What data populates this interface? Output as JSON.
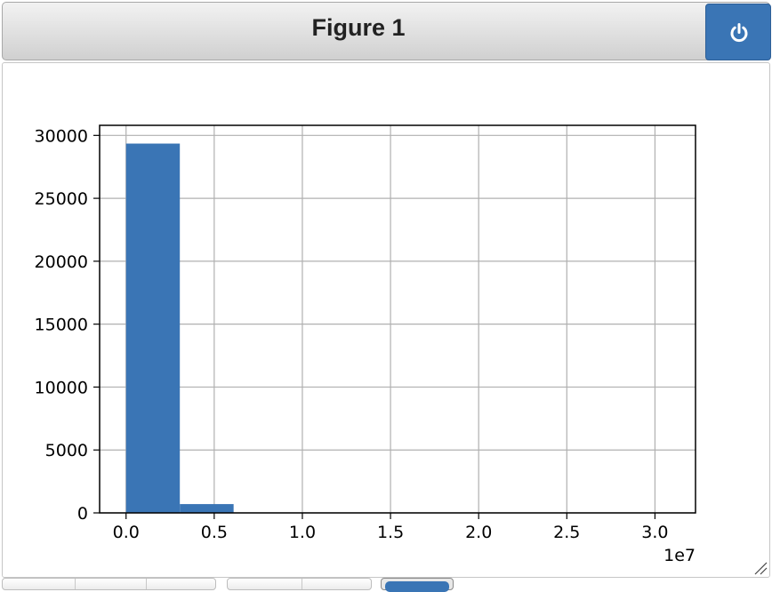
{
  "window": {
    "title": "Figure 1",
    "power_icon": "power-icon",
    "accent_color": "#3a75b5"
  },
  "toolbar": {
    "icons": [
      "home-icon",
      "back-icon",
      "forward-icon",
      "pan-icon",
      "zoom-icon",
      "download-icon"
    ]
  },
  "chart_data": {
    "type": "bar",
    "title": "",
    "xlabel": "",
    "ylabel": "",
    "x_offset_label": "1e7",
    "bar_color": "#3a75b5",
    "grid": true,
    "xlim": [
      -0.15,
      3.23
    ],
    "ylim": [
      0,
      30800
    ],
    "xticks": [
      0.0,
      0.5,
      1.0,
      1.5,
      2.0,
      2.5,
      3.0
    ],
    "xtick_labels": [
      "0.0",
      "0.5",
      "1.0",
      "1.5",
      "2.0",
      "2.5",
      "3.0"
    ],
    "yticks": [
      0,
      5000,
      10000,
      15000,
      20000,
      25000,
      30000
    ],
    "ytick_labels": [
      "0",
      "5000",
      "10000",
      "15000",
      "20000",
      "25000",
      "30000"
    ],
    "bins": [
      0.0,
      0.305,
      0.61,
      0.915,
      1.22,
      1.525,
      1.83,
      2.135,
      2.44,
      2.745,
      3.05
    ],
    "counts": [
      29350,
      700,
      20,
      5,
      2,
      1,
      1,
      0,
      0,
      1
    ]
  }
}
